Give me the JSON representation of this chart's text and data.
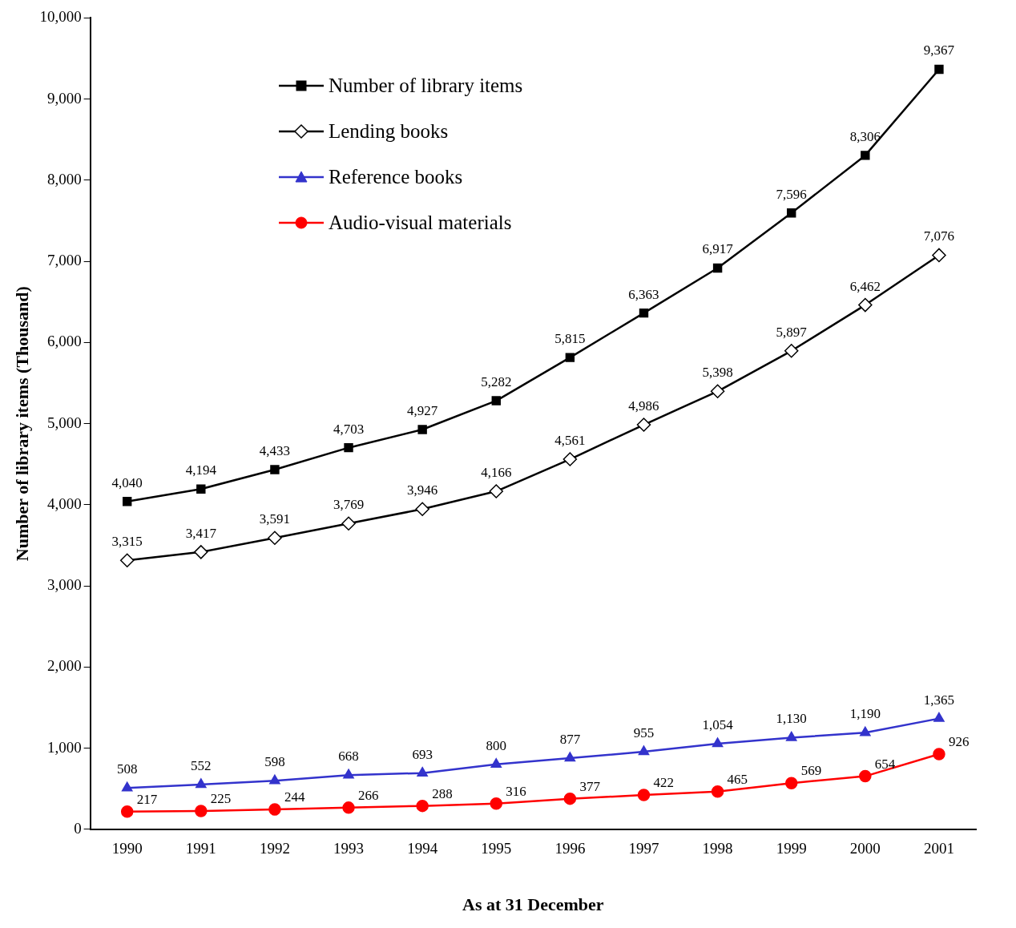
{
  "chart_data": {
    "type": "line",
    "xlabel": "As at 31 December",
    "ylabel": "Number of library items (Thousand)",
    "categories": [
      "1990",
      "1991",
      "1992",
      "1993",
      "1994",
      "1995",
      "1996",
      "1997",
      "1998",
      "1999",
      "2000",
      "2001"
    ],
    "series": [
      {
        "name": "Number of library items",
        "color": "#000000",
        "marker": "square",
        "values": [
          4040,
          4194,
          4433,
          4703,
          4927,
          5282,
          5815,
          6363,
          6917,
          7596,
          8306,
          9367
        ],
        "value_labels": [
          "4,040",
          "4,194",
          "4,433",
          "4,703",
          "4,927",
          "5,282",
          "5,815",
          "6,363",
          "6,917",
          "7,596",
          "8,306",
          "9,367"
        ]
      },
      {
        "name": "Lending books",
        "color": "#000000",
        "marker": "diamond",
        "values": [
          3315,
          3417,
          3591,
          3769,
          3946,
          4166,
          4561,
          4986,
          5398,
          5897,
          6462,
          7076
        ],
        "value_labels": [
          "3,315",
          "3,417",
          "3,591",
          "3,769",
          "3,946",
          "4,166",
          "4,561",
          "4,986",
          "5,398",
          "5,897",
          "6,462",
          "7,076"
        ]
      },
      {
        "name": "Reference books",
        "color": "#3333cc",
        "marker": "triangle",
        "values": [
          508,
          552,
          598,
          668,
          693,
          800,
          877,
          955,
          1054,
          1130,
          1190,
          1365
        ],
        "value_labels": [
          "508",
          "552",
          "598",
          "668",
          "693",
          "800",
          "877",
          "955",
          "1,054",
          "1,130",
          "1,190",
          "1,365"
        ]
      },
      {
        "name": "Audio-visual materials",
        "color": "#ff0000",
        "marker": "circle",
        "values": [
          217,
          225,
          244,
          266,
          288,
          316,
          377,
          422,
          465,
          569,
          654,
          926
        ],
        "value_labels": [
          "217",
          "225",
          "244",
          "266",
          "288",
          "316",
          "377",
          "422",
          "465",
          "569",
          "654",
          "926"
        ]
      }
    ],
    "ylim": [
      0,
      10000
    ],
    "yticks": [
      0,
      {
        "value": 1000,
        "label": "1,000"
      },
      {
        "value": 2000,
        "label": "2,000"
      },
      {
        "value": 3000,
        "label": "3,000"
      },
      {
        "value": 4000,
        "label": "4,000"
      },
      {
        "value": 5000,
        "label": "5,000"
      },
      {
        "value": 6000,
        "label": "6,000"
      },
      {
        "value": 7000,
        "label": "7,000"
      },
      {
        "value": 8000,
        "label": "8,000"
      },
      {
        "value": 9000,
        "label": "9,000"
      },
      {
        "value": 10000,
        "label": "10,000"
      }
    ],
    "grid": false,
    "legend": "top left",
    "line_style": "solid"
  }
}
